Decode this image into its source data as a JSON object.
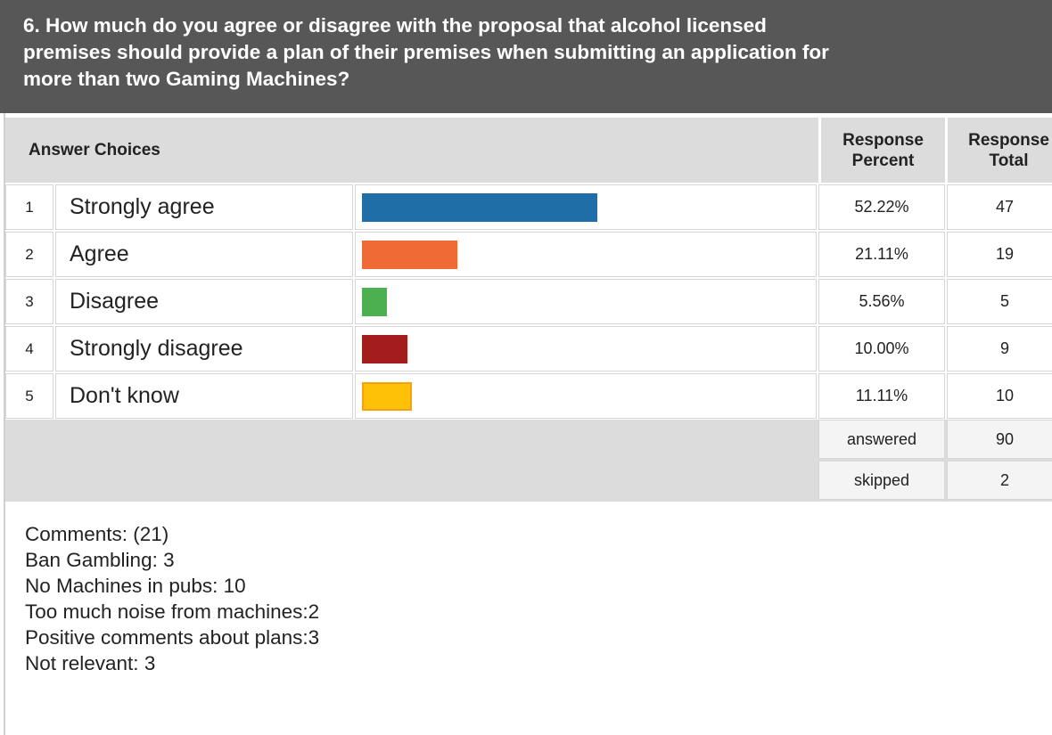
{
  "question": {
    "line1": "6. How much do you agree or disagree with the proposal that alcohol licensed",
    "line2": "premises should provide a plan of their premises when submitting an application for",
    "line3": "more than two Gaming Machines?"
  },
  "table": {
    "header": {
      "answer_choices": "Answer Choices",
      "response_percent_1": "Response",
      "response_percent_2": "Percent",
      "response_total_1": "Response",
      "response_total_2": "Total"
    },
    "rows": [
      {
        "num": "1",
        "label": "Strongly agree",
        "percent": "52.22%",
        "total": "47",
        "fraction": 0.5222,
        "color": "#1f6ea8"
      },
      {
        "num": "2",
        "label": "Agree",
        "percent": "21.11%",
        "total": "19",
        "fraction": 0.2111,
        "color": "#f06a35"
      },
      {
        "num": "3",
        "label": "Disagree",
        "percent": "5.56%",
        "total": "5",
        "fraction": 0.0556,
        "color": "#4caf50"
      },
      {
        "num": "4",
        "label": "Strongly disagree",
        "percent": "10.00%",
        "total": "9",
        "fraction": 0.1,
        "color": "#a31d1d"
      },
      {
        "num": "5",
        "label": "Don't know",
        "percent": "11.11%",
        "total": "10",
        "fraction": 0.1111,
        "color": "#ffc107"
      }
    ],
    "answered_label": "answered",
    "answered_value": "90",
    "skipped_label": "skipped",
    "skipped_value": "2"
  },
  "comments": [
    "Comments: (21)",
    "Ban Gambling: 3",
    "No Machines in pubs: 10",
    "Too much noise from machines:2",
    "Positive comments about plans:3",
    "Not relevant: 3"
  ]
}
